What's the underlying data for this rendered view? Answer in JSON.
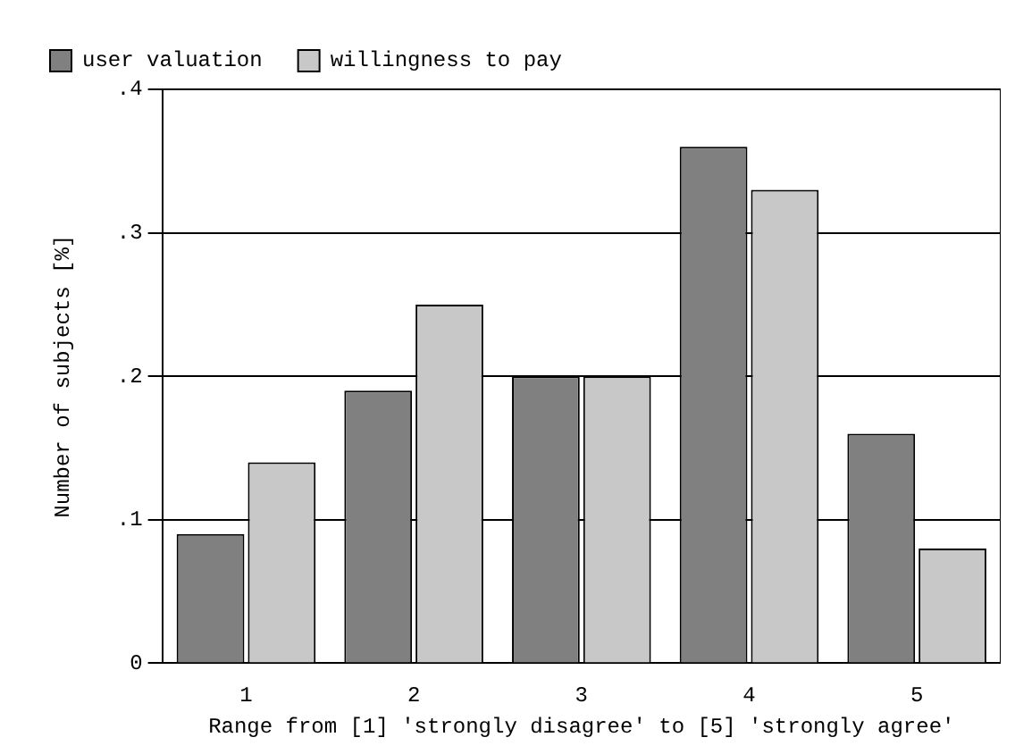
{
  "chart_data": {
    "type": "bar",
    "xlabel": "Range from [1] 'strongly disagree' to [5] 'strongly agree'",
    "ylabel": "Number of subjects [%]",
    "categories": [
      "1",
      "2",
      "3",
      "4",
      "5"
    ],
    "series": [
      {
        "name": "user valuation",
        "color": "#808080",
        "values": [
          0.09,
          0.19,
          0.2,
          0.36,
          0.16
        ]
      },
      {
        "name": "willingness to pay",
        "color": "#c8c8c8",
        "values": [
          0.14,
          0.25,
          0.2,
          0.33,
          0.08
        ]
      }
    ],
    "ylim": [
      0,
      0.4
    ],
    "yticks": [
      0,
      {
        "value": 0.1,
        "label": ".1"
      },
      {
        "value": 0.2,
        "label": ".2"
      },
      {
        "value": 0.3,
        "label": ".3"
      },
      {
        "value": 0.4,
        "label": ".4"
      }
    ],
    "grid": "y",
    "legend": "top"
  }
}
